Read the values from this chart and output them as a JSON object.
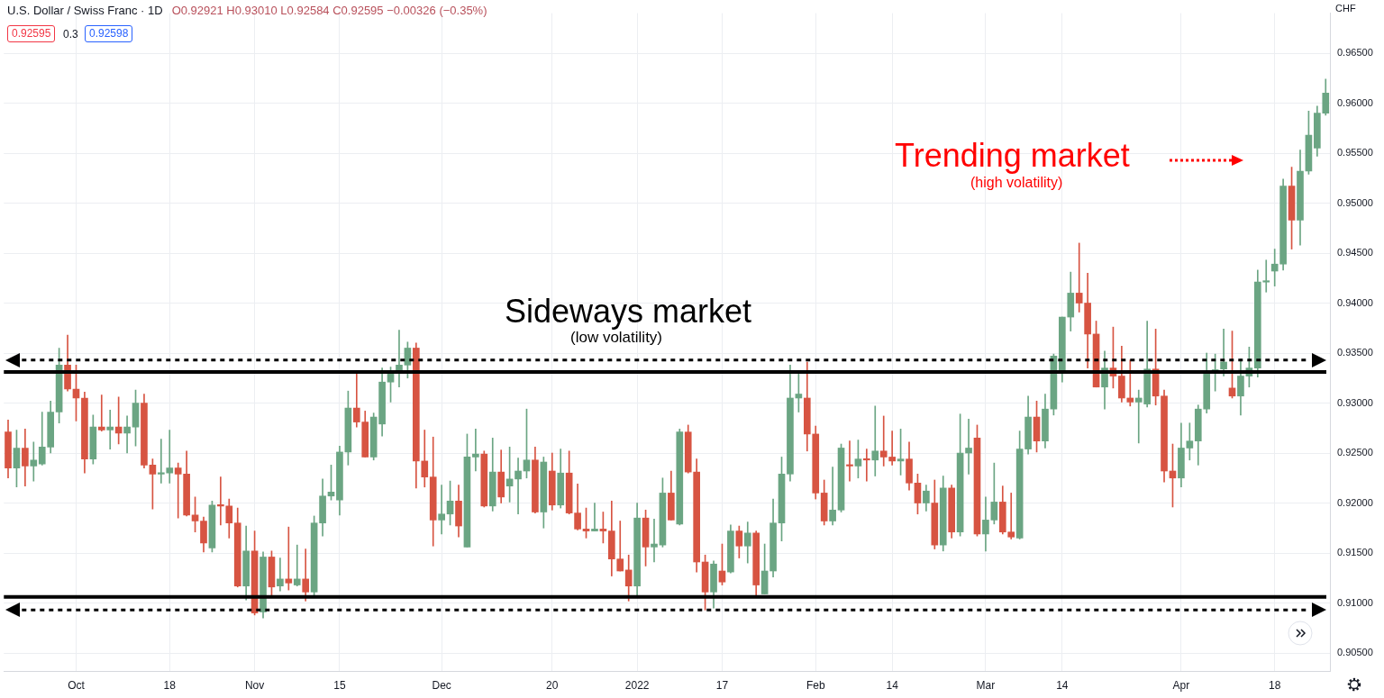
{
  "chart_data": {
    "type": "candlestick",
    "title": "U.S. Dollar / Swiss Franc · 1D",
    "subtitle": "O0.92921 H0.93010 L0.92584 C0.92595 −0.00326 (−0.35%)",
    "ylabel": "CHF",
    "annotations": [
      "Sideways market",
      "(low volatility)",
      "Trending market",
      "(high volatility)",
      "0.92595",
      "0.3",
      "0.92598"
    ],
    "categories": [
      null,
      null,
      null,
      null,
      null,
      null,
      null,
      null,
      "Oct",
      null,
      null,
      null,
      null,
      null,
      null,
      null,
      null,
      null,
      null,
      "18",
      null,
      null,
      null,
      null,
      null,
      null,
      null,
      null,
      null,
      "Nov",
      null,
      null,
      null,
      null,
      null,
      null,
      null,
      null,
      null,
      "15",
      null,
      null,
      null,
      null,
      null,
      null,
      null,
      null,
      null,
      null,
      null,
      "Dec",
      null,
      null,
      null,
      null,
      null,
      null,
      null,
      null,
      null,
      null,
      null,
      null,
      "20",
      null,
      null,
      null,
      null,
      null,
      null,
      null,
      null,
      null,
      "2022",
      null,
      null,
      null,
      null,
      null,
      null,
      null,
      null,
      null,
      "17",
      null,
      null,
      null,
      null,
      null,
      null,
      null,
      null,
      null,
      null,
      "Feb",
      null,
      null,
      null,
      null,
      null,
      null,
      null,
      null,
      "14",
      null,
      null,
      null,
      null,
      null,
      null,
      null,
      null,
      null,
      null,
      "Mar",
      null,
      null,
      null,
      null,
      null,
      null,
      null,
      null,
      "14",
      null,
      null,
      null,
      null,
      null,
      null,
      null,
      null,
      null,
      null,
      null,
      null,
      null,
      "Apr",
      null,
      null,
      null,
      null,
      null,
      null,
      null,
      null,
      null,
      null,
      "18",
      null,
      null,
      null,
      null,
      null,
      null
    ],
    "ohlc": [
      [
        0.9271,
        0.9283,
        0.9225,
        0.9235
      ],
      [
        0.9235,
        0.9273,
        0.9216,
        0.9255
      ],
      [
        0.9255,
        0.9274,
        0.9217,
        0.9237
      ],
      [
        0.9237,
        0.9261,
        0.9222,
        0.9243
      ],
      [
        0.9239,
        0.9291,
        0.9238,
        0.9256
      ],
      [
        0.9256,
        0.9302,
        0.925,
        0.9291
      ],
      [
        0.9291,
        0.9355,
        0.928,
        0.9338
      ],
      [
        0.9338,
        0.9368,
        0.9312,
        0.9314
      ],
      [
        0.9314,
        0.9338,
        0.9282,
        0.9305
      ],
      [
        0.9305,
        0.9311,
        0.923,
        0.9244
      ],
      [
        0.9244,
        0.9288,
        0.9239,
        0.9276
      ],
      [
        0.9276,
        0.9308,
        0.9272,
        0.9273
      ],
      [
        0.9273,
        0.9293,
        0.9254,
        0.9276
      ],
      [
        0.9276,
        0.9306,
        0.9259,
        0.927
      ],
      [
        0.927,
        0.9287,
        0.925,
        0.9276
      ],
      [
        0.9276,
        0.9313,
        0.9257,
        0.93
      ],
      [
        0.93,
        0.9309,
        0.9235,
        0.9238
      ],
      [
        0.9238,
        0.9244,
        0.9194,
        0.9229
      ],
      [
        0.9229,
        0.9264,
        0.922,
        0.923
      ],
      [
        0.923,
        0.9273,
        0.922,
        0.9235
      ],
      [
        0.9235,
        0.924,
        0.9185,
        0.9229
      ],
      [
        0.9229,
        0.9252,
        0.9187,
        0.9188
      ],
      [
        0.9188,
        0.9206,
        0.9171,
        0.9182
      ],
      [
        0.9182,
        0.9186,
        0.9151,
        0.916
      ],
      [
        0.9155,
        0.9202,
        0.9151,
        0.9198
      ],
      [
        0.9198,
        0.9226,
        0.9178,
        0.9197
      ],
      [
        0.9197,
        0.9204,
        0.9165,
        0.918
      ],
      [
        0.918,
        0.9195,
        0.9116,
        0.9117
      ],
      [
        0.9117,
        0.9177,
        0.9103,
        0.9152
      ],
      [
        0.9152,
        0.9172,
        0.9088,
        0.909
      ],
      [
        0.9091,
        0.9151,
        0.9085,
        0.9146
      ],
      [
        0.9146,
        0.9152,
        0.9107,
        0.9116
      ],
      [
        0.9117,
        0.9145,
        0.9112,
        0.9124
      ],
      [
        0.9124,
        0.9176,
        0.9113,
        0.912
      ],
      [
        0.9118,
        0.9158,
        0.9117,
        0.9124
      ],
      [
        0.9124,
        0.9154,
        0.9102,
        0.9111
      ],
      [
        0.9111,
        0.9187,
        0.9107,
        0.918
      ],
      [
        0.918,
        0.9224,
        0.9167,
        0.9207
      ],
      [
        0.9207,
        0.9238,
        0.9203,
        0.9211
      ],
      [
        0.9203,
        0.9257,
        0.9188,
        0.9251
      ],
      [
        0.9251,
        0.9312,
        0.9238,
        0.9295
      ],
      [
        0.9295,
        0.933,
        0.9276,
        0.9281
      ],
      [
        0.9281,
        0.9292,
        0.9246,
        0.9246
      ],
      [
        0.9246,
        0.929,
        0.9243,
        0.9286
      ],
      [
        0.9279,
        0.9335,
        0.9267,
        0.9321
      ],
      [
        0.9321,
        0.9336,
        0.9301,
        0.933
      ],
      [
        0.933,
        0.9373,
        0.9316,
        0.9338
      ],
      [
        0.9338,
        0.9361,
        0.9325,
        0.9355
      ],
      [
        0.9355,
        0.936,
        0.9215,
        0.9242
      ],
      [
        0.9242,
        0.9273,
        0.9216,
        0.9226
      ],
      [
        0.9226,
        0.9266,
        0.9157,
        0.9183
      ],
      [
        0.9183,
        0.9218,
        0.9169,
        0.9189
      ],
      [
        0.9189,
        0.9222,
        0.9178,
        0.9202
      ],
      [
        0.9202,
        0.9218,
        0.9166,
        0.9177
      ],
      [
        0.9156,
        0.9269,
        0.9156,
        0.9246
      ],
      [
        0.9246,
        0.9274,
        0.9232,
        0.9249
      ],
      [
        0.9249,
        0.9252,
        0.9196,
        0.9197
      ],
      [
        0.9197,
        0.9265,
        0.9192,
        0.9231
      ],
      [
        0.9231,
        0.9253,
        0.92,
        0.9206
      ],
      [
        0.9217,
        0.9256,
        0.9201,
        0.9224
      ],
      [
        0.9224,
        0.9245,
        0.9189,
        0.9232
      ],
      [
        0.9232,
        0.9294,
        0.9225,
        0.9243
      ],
      [
        0.9243,
        0.9256,
        0.919,
        0.9191
      ],
      [
        0.9191,
        0.9246,
        0.9175,
        0.9241
      ],
      [
        0.9232,
        0.925,
        0.9193,
        0.9198
      ],
      [
        0.9198,
        0.9254,
        0.9195,
        0.923
      ],
      [
        0.923,
        0.9252,
        0.9189,
        0.919
      ],
      [
        0.919,
        0.9219,
        0.9173,
        0.9174
      ],
      [
        0.9174,
        0.9195,
        0.9165,
        0.9172
      ],
      [
        0.9172,
        0.92,
        0.9172,
        0.9174
      ],
      [
        0.9174,
        0.9191,
        0.916,
        0.9172
      ],
      [
        0.9172,
        0.9202,
        0.9127,
        0.9144
      ],
      [
        0.9144,
        0.9182,
        0.9132,
        0.9132
      ],
      [
        0.9133,
        0.9148,
        0.9102,
        0.9117
      ],
      [
        0.9117,
        0.92,
        0.9106,
        0.9185
      ],
      [
        0.9185,
        0.9193,
        0.9137,
        0.9156
      ],
      [
        0.9156,
        0.9184,
        0.9141,
        0.9159
      ],
      [
        0.9158,
        0.9225,
        0.9156,
        0.921
      ],
      [
        0.921,
        0.9232,
        0.9183,
        0.9183
      ],
      [
        0.9179,
        0.9274,
        0.9178,
        0.9271
      ],
      [
        0.9271,
        0.9278,
        0.923,
        0.9231
      ],
      [
        0.9231,
        0.9244,
        0.9131,
        0.9141
      ],
      [
        0.9141,
        0.9148,
        0.9093,
        0.9111
      ],
      [
        0.9111,
        0.9142,
        0.9095,
        0.9139
      ],
      [
        0.9132,
        0.9159,
        0.9118,
        0.9121
      ],
      [
        0.9131,
        0.9178,
        0.913,
        0.9172
      ],
      [
        0.9172,
        0.9177,
        0.9145,
        0.9157
      ],
      [
        0.9157,
        0.9181,
        0.914,
        0.917
      ],
      [
        0.917,
        0.9172,
        0.9107,
        0.9118
      ],
      [
        0.9109,
        0.9159,
        0.9109,
        0.9132
      ],
      [
        0.9132,
        0.9204,
        0.9126,
        0.918
      ],
      [
        0.918,
        0.9246,
        0.9162,
        0.9229
      ],
      [
        0.9229,
        0.9338,
        0.9222,
        0.9305
      ],
      [
        0.9305,
        0.9329,
        0.9291,
        0.9309
      ],
      [
        0.9305,
        0.9341,
        0.9252,
        0.9269
      ],
      [
        0.9269,
        0.9277,
        0.9204,
        0.921
      ],
      [
        0.921,
        0.9223,
        0.9178,
        0.9182
      ],
      [
        0.9182,
        0.9236,
        0.9178,
        0.9193
      ],
      [
        0.9193,
        0.9259,
        0.9191,
        0.9255
      ],
      [
        0.9238,
        0.9262,
        0.9222,
        0.9237
      ],
      [
        0.9237,
        0.9263,
        0.9225,
        0.9244
      ],
      [
        0.9244,
        0.9254,
        0.9222,
        0.9243
      ],
      [
        0.9243,
        0.9297,
        0.9227,
        0.9252
      ],
      [
        0.9252,
        0.9287,
        0.9237,
        0.9246
      ],
      [
        0.9246,
        0.9272,
        0.9238,
        0.9242
      ],
      [
        0.9242,
        0.9274,
        0.9228,
        0.9244
      ],
      [
        0.9244,
        0.9261,
        0.9213,
        0.922
      ],
      [
        0.922,
        0.9229,
        0.9189,
        0.92
      ],
      [
        0.92,
        0.9218,
        0.9192,
        0.9212
      ],
      [
        0.92,
        0.9223,
        0.9154,
        0.9158
      ],
      [
        0.9158,
        0.9227,
        0.9152,
        0.9215
      ],
      [
        0.9215,
        0.9218,
        0.9165,
        0.9171
      ],
      [
        0.9171,
        0.9289,
        0.9167,
        0.925
      ],
      [
        0.925,
        0.9284,
        0.9229,
        0.9255
      ],
      [
        0.9265,
        0.9278,
        0.9167,
        0.9169
      ],
      [
        0.9169,
        0.9206,
        0.9152,
        0.9183
      ],
      [
        0.9183,
        0.924,
        0.9179,
        0.9201
      ],
      [
        0.9201,
        0.9217,
        0.9169,
        0.9171
      ],
      [
        0.9171,
        0.921,
        0.9164,
        0.9166
      ],
      [
        0.9165,
        0.9272,
        0.9164,
        0.9254
      ],
      [
        0.9254,
        0.9307,
        0.9249,
        0.9286
      ],
      [
        0.9286,
        0.9302,
        0.9251,
        0.9262
      ],
      [
        0.9262,
        0.9309,
        0.9255,
        0.9294
      ],
      [
        0.9294,
        0.9349,
        0.9288,
        0.9347
      ],
      [
        0.9333,
        0.9386,
        0.9321,
        0.9386
      ],
      [
        0.9386,
        0.9431,
        0.9372,
        0.941
      ],
      [
        0.941,
        0.946,
        0.9391,
        0.94
      ],
      [
        0.94,
        0.943,
        0.9335,
        0.9369
      ],
      [
        0.9369,
        0.9382,
        0.9316,
        0.9316
      ],
      [
        0.9316,
        0.9352,
        0.9294,
        0.9335
      ],
      [
        0.9335,
        0.9376,
        0.9315,
        0.9327
      ],
      [
        0.9327,
        0.9357,
        0.9301,
        0.9305
      ],
      [
        0.9305,
        0.9343,
        0.9297,
        0.9301
      ],
      [
        0.9301,
        0.9313,
        0.926,
        0.9305
      ],
      [
        0.9299,
        0.9382,
        0.9296,
        0.9334
      ],
      [
        0.9334,
        0.9374,
        0.9298,
        0.9307
      ],
      [
        0.9307,
        0.9313,
        0.9221,
        0.9232
      ],
      [
        0.9232,
        0.9259,
        0.9196,
        0.9225
      ],
      [
        0.9225,
        0.928,
        0.9216,
        0.9255
      ],
      [
        0.9255,
        0.928,
        0.9243,
        0.9262
      ],
      [
        0.9262,
        0.9298,
        0.9238,
        0.9294
      ],
      [
        0.9294,
        0.935,
        0.929,
        0.9332
      ],
      [
        0.9332,
        0.9349,
        0.9312,
        0.9333
      ],
      [
        0.9334,
        0.9374,
        0.9327,
        0.9341
      ],
      [
        0.9315,
        0.9372,
        0.9305,
        0.9307
      ],
      [
        0.9307,
        0.9344,
        0.9288,
        0.9327
      ],
      [
        0.9327,
        0.9356,
        0.9316,
        0.9335
      ],
      [
        0.9335,
        0.9433,
        0.9326,
        0.9421
      ],
      [
        0.9421,
        0.9443,
        0.9411,
        0.9422
      ],
      [
        0.9432,
        0.9454,
        0.9417,
        0.9439
      ],
      [
        0.9439,
        0.9524,
        0.9433,
        0.9517
      ],
      [
        0.9517,
        0.9536,
        0.9454,
        0.9483
      ],
      [
        0.9483,
        0.9553,
        0.9458,
        0.9532
      ],
      [
        0.9532,
        0.9592,
        0.9529,
        0.9568
      ],
      [
        0.9555,
        0.9597,
        0.9547,
        0.959
      ],
      [
        0.959,
        0.9624,
        0.9588,
        0.961
      ]
    ],
    "colors": [
      "#d75442",
      "#6ba583",
      "#d75442",
      "#6ba583",
      "#6ba583",
      "#6ba583",
      "#6ba583",
      "#d75442",
      "#d75442",
      "#d75442",
      "#6ba583",
      "#d75442",
      "#6ba583",
      "#d75442",
      "#6ba583",
      "#6ba583",
      "#d75442",
      "#d75442",
      "#6ba583",
      "#6ba583",
      "#d75442",
      "#d75442",
      "#d75442",
      "#d75442",
      "#6ba583",
      "#d75442",
      "#d75442",
      "#d75442",
      "#6ba583",
      "#d75442",
      "#6ba583",
      "#d75442",
      "#6ba583",
      "#d75442",
      "#6ba583",
      "#d75442",
      "#6ba583",
      "#6ba583",
      "#6ba583",
      "#6ba583",
      "#6ba583",
      "#d75442",
      "#d75442",
      "#6ba583",
      "#6ba583",
      "#6ba583",
      "#6ba583",
      "#6ba583",
      "#d75442",
      "#d75442",
      "#d75442",
      "#6ba583",
      "#6ba583",
      "#d75442",
      "#6ba583",
      "#6ba583",
      "#d75442",
      "#6ba583",
      "#d75442",
      "#6ba583",
      "#6ba583",
      "#6ba583",
      "#d75442",
      "#6ba583",
      "#d75442",
      "#6ba583",
      "#d75442",
      "#d75442",
      "#d75442",
      "#6ba583",
      "#d75442",
      "#d75442",
      "#d75442",
      "#d75442",
      "#6ba583",
      "#d75442",
      "#6ba583",
      "#6ba583",
      "#d75442",
      "#6ba583",
      "#d75442",
      "#d75442",
      "#d75442",
      "#6ba583",
      "#d75442",
      "#6ba583",
      "#d75442",
      "#6ba583",
      "#d75442",
      "#6ba583",
      "#6ba583",
      "#6ba583",
      "#6ba583",
      "#6ba583",
      "#d75442",
      "#d75442",
      "#d75442",
      "#6ba583",
      "#6ba583",
      "#d75442",
      "#6ba583",
      "#d75442",
      "#6ba583",
      "#d75442",
      "#d75442",
      "#6ba583",
      "#d75442",
      "#d75442",
      "#6ba583",
      "#d75442",
      "#6ba583",
      "#d75442",
      "#6ba583",
      "#6ba583",
      "#d75442",
      "#6ba583",
      "#6ba583",
      "#d75442",
      "#d75442",
      "#6ba583",
      "#6ba583",
      "#d75442",
      "#6ba583",
      "#6ba583",
      "#6ba583",
      "#6ba583",
      "#d75442",
      "#d75442",
      "#d75442",
      "#6ba583",
      "#d75442",
      "#d75442",
      "#d75442",
      "#6ba583",
      "#6ba583",
      "#d75442",
      "#d75442",
      "#d75442",
      "#6ba583",
      "#6ba583",
      "#6ba583",
      "#6ba583",
      "#6ba583",
      "#6ba583",
      "#d75442",
      "#6ba583",
      "#6ba583",
      "#6ba583",
      "#6ba583",
      "#6ba583",
      "#6ba583",
      "#d75442",
      "#6ba583",
      "#6ba583",
      "#6ba583",
      "#6ba583"
    ],
    "ylim": [
      0.9032,
      0.969
    ],
    "yticks": [
      {
        "value": 0.905,
        "label": "0.90500"
      },
      {
        "value": 0.91,
        "label": "0.91000"
      },
      {
        "value": 0.915,
        "label": "0.91500"
      },
      {
        "value": 0.92,
        "label": "0.92000"
      },
      {
        "value": 0.925,
        "label": "0.92500"
      },
      {
        "value": 0.93,
        "label": "0.93000"
      },
      {
        "value": 0.935,
        "label": "0.93500"
      },
      {
        "value": 0.94,
        "label": "0.94000"
      },
      {
        "value": 0.945,
        "label": "0.94500"
      },
      {
        "value": 0.95,
        "label": "0.95000"
      },
      {
        "value": 0.955,
        "label": "0.95500"
      },
      {
        "value": 0.96,
        "label": "0.96000"
      },
      {
        "value": 0.965,
        "label": "0.96500"
      }
    ],
    "ref_lines": [
      {
        "axis": "y",
        "value": 0.9331,
        "color": "#000000",
        "line_style": "solid"
      },
      {
        "axis": "y",
        "value": 0.9106,
        "color": "#000000",
        "line_style": "solid"
      },
      {
        "axis": "y",
        "value": 0.9343,
        "color": "#000000",
        "line_style": "dotted"
      },
      {
        "axis": "y",
        "value": 0.9093,
        "color": "#000000",
        "line_style": "dotted"
      }
    ],
    "grid": true,
    "legend": false
  }
}
